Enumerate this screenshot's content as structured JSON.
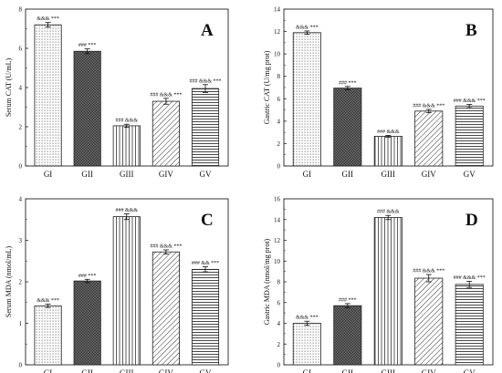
{
  "chart_data": [
    {
      "type": "bar",
      "panel": "A",
      "ylabel": "Serum CAT (U/mL)",
      "categories": [
        "GI",
        "GII",
        "GIII",
        "GIV",
        "GV"
      ],
      "values": [
        7.2,
        5.85,
        2.05,
        3.3,
        3.95
      ],
      "errors": [
        0.12,
        0.12,
        0.08,
        0.15,
        0.2
      ],
      "annotations": [
        "&&& ***",
        "### ***",
        "### &&&",
        "### &&& ***",
        "### &&& ***"
      ],
      "patterns": [
        "dots",
        "dark",
        "vlines",
        "diag",
        "hlines"
      ],
      "ylim": [
        0,
        8
      ],
      "yticks": [
        0,
        2,
        4,
        6,
        8
      ]
    },
    {
      "type": "bar",
      "panel": "B",
      "ylabel": "Gastric CAT (U/mg prot)",
      "categories": [
        "GI",
        "GII",
        "GIII",
        "GIV",
        "GV"
      ],
      "values": [
        11.9,
        6.95,
        2.65,
        4.9,
        5.35
      ],
      "errors": [
        0.15,
        0.15,
        0.08,
        0.15,
        0.15
      ],
      "annotations": [
        "&&& ***",
        "### ***",
        "### &&&",
        "### &&& ***",
        "### &&& ***"
      ],
      "patterns": [
        "dots",
        "dark",
        "vlines",
        "diag",
        "hlines"
      ],
      "ylim": [
        0,
        14
      ],
      "yticks": [
        0,
        2,
        4,
        6,
        8,
        10,
        12,
        14
      ]
    },
    {
      "type": "bar",
      "panel": "C",
      "ylabel": "Serum MDA (nmol/mL)",
      "categories": [
        "GI",
        "GII",
        "GIII",
        "GIV",
        "GV"
      ],
      "values": [
        1.42,
        2.02,
        3.57,
        2.72,
        2.3
      ],
      "errors": [
        0.04,
        0.04,
        0.07,
        0.05,
        0.06
      ],
      "annotations": [
        "&&& ***",
        "### ***",
        "### &&&",
        "### &&& ***",
        "### && ***"
      ],
      "patterns": [
        "dots",
        "dark",
        "vlines",
        "diag",
        "hlines"
      ],
      "ylim": [
        0,
        4
      ],
      "yticks": [
        0,
        1,
        2,
        3,
        4
      ]
    },
    {
      "type": "bar",
      "panel": "D",
      "ylabel": "Gastric MDA (nmol/mg prot)",
      "categories": [
        "GI",
        "GII",
        "GIII",
        "GIV",
        "GV"
      ],
      "values": [
        4.0,
        5.7,
        14.2,
        8.35,
        7.75
      ],
      "errors": [
        0.2,
        0.2,
        0.2,
        0.35,
        0.3
      ],
      "annotations": [
        "&&& ***",
        "### ***",
        "### &&&",
        "### &&& ***",
        "### &&& ***"
      ],
      "patterns": [
        "dots",
        "dark",
        "vlines",
        "diag",
        "hlines"
      ],
      "ylim": [
        0,
        16
      ],
      "yticks": [
        0,
        2,
        4,
        6,
        8,
        10,
        12,
        14,
        16
      ]
    }
  ]
}
